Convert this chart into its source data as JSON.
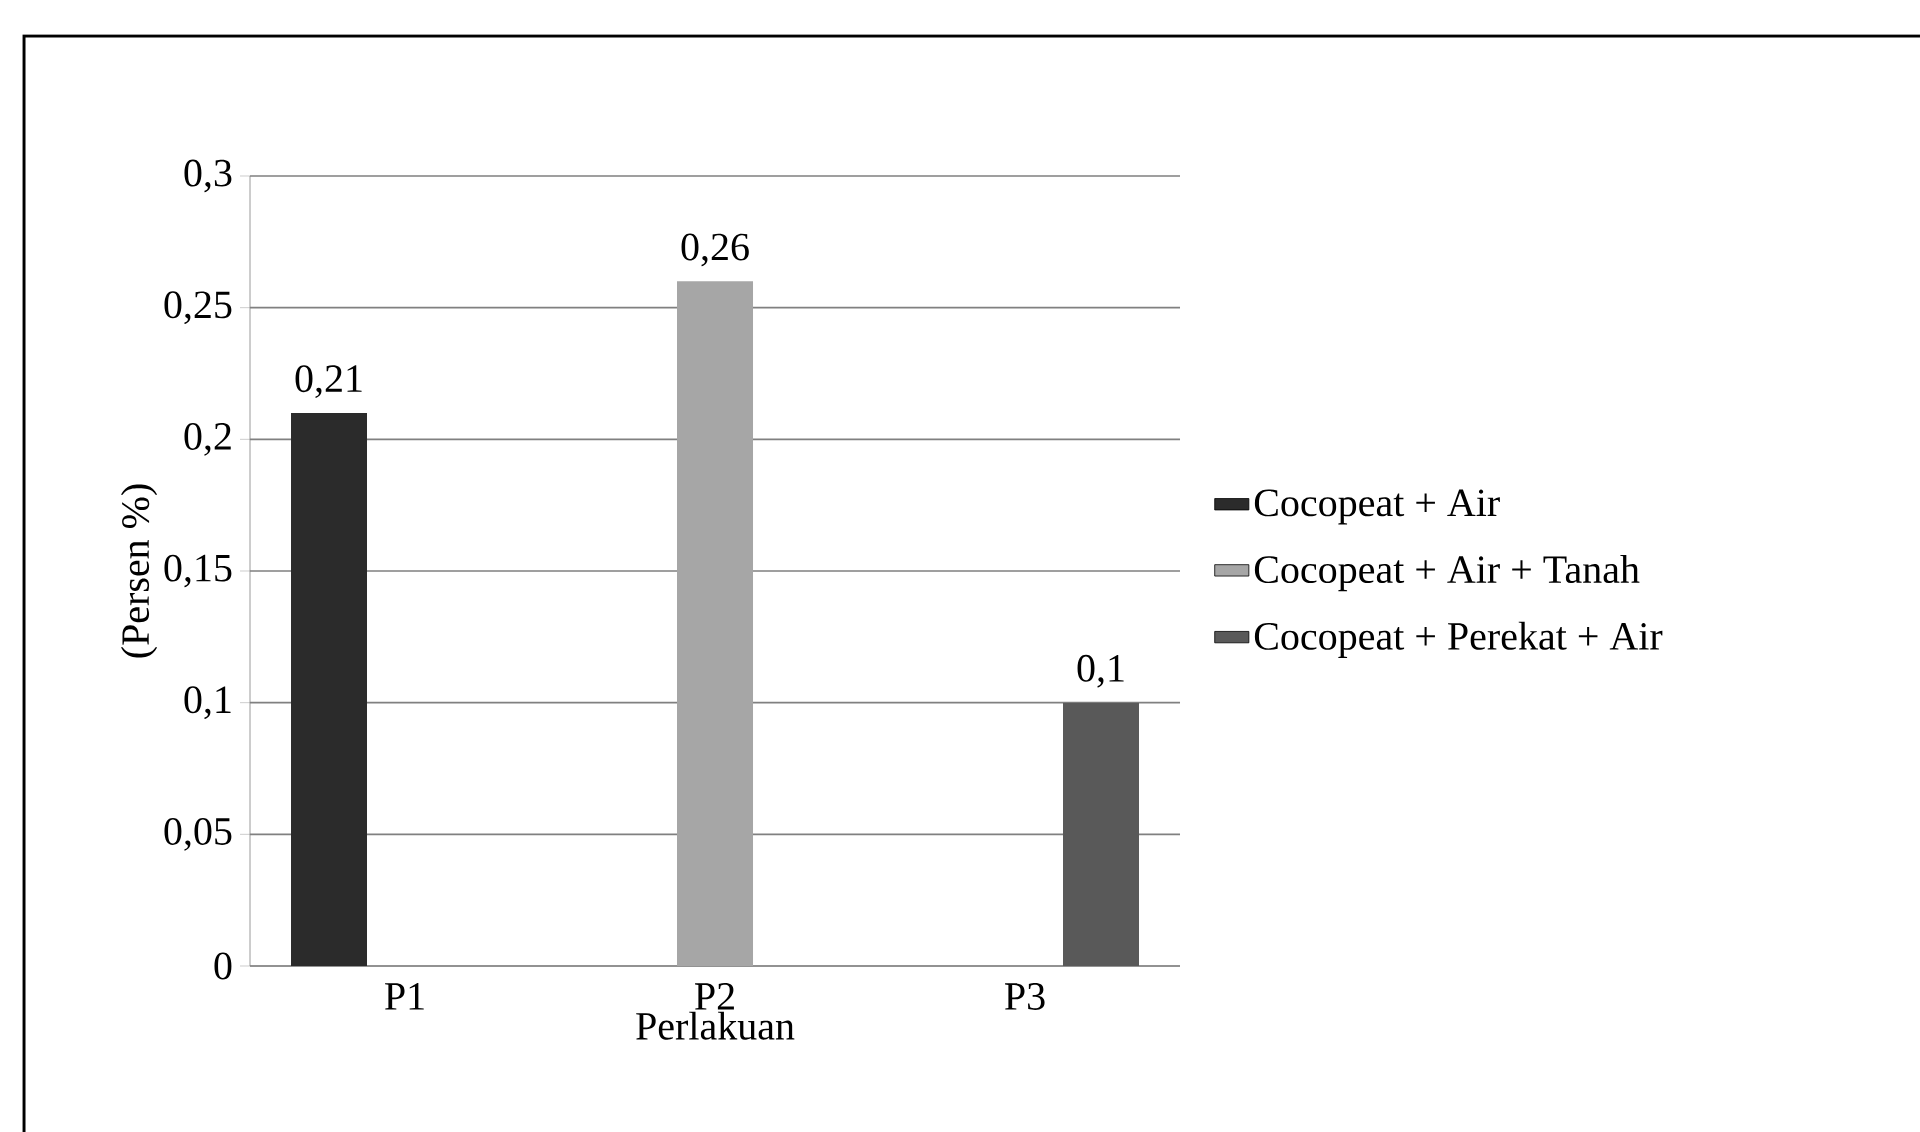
{
  "chart_data": {
    "type": "bar",
    "ylabel": "(Persen %)",
    "xlabel": "Perlakuan",
    "categories": [
      "P1",
      "P2",
      "P3"
    ],
    "series": [
      {
        "name": "Cocopeat +  Air",
        "color": "#2b2b2b",
        "values": [
          0.21,
          null,
          null
        ]
      },
      {
        "name": "Cocopeat + Air + Tanah",
        "color": "#a6a6a6",
        "values": [
          null,
          0.26,
          null
        ]
      },
      {
        "name": "Cocopeat + Perekat + Air",
        "color": "#595959",
        "values": [
          null,
          null,
          0.1
        ]
      }
    ],
    "ylim": [
      0,
      0.3
    ],
    "yticks": [
      0,
      {
        "value": 0.05,
        "label": "0,05"
      },
      {
        "value": 0.1,
        "label": "0,1"
      },
      {
        "value": 0.15,
        "label": "0,15"
      },
      {
        "value": 0.2,
        "label": "0,2"
      },
      {
        "value": 0.25,
        "label": "0,25"
      },
      {
        "value": 0.3,
        "label": "0,3"
      }
    ],
    "value_labels": [
      [
        "0,21",
        null,
        null
      ],
      [
        null,
        "0,26",
        null
      ],
      [
        null,
        null,
        "0,1"
      ]
    ],
    "grid": "y",
    "legend": "right"
  }
}
